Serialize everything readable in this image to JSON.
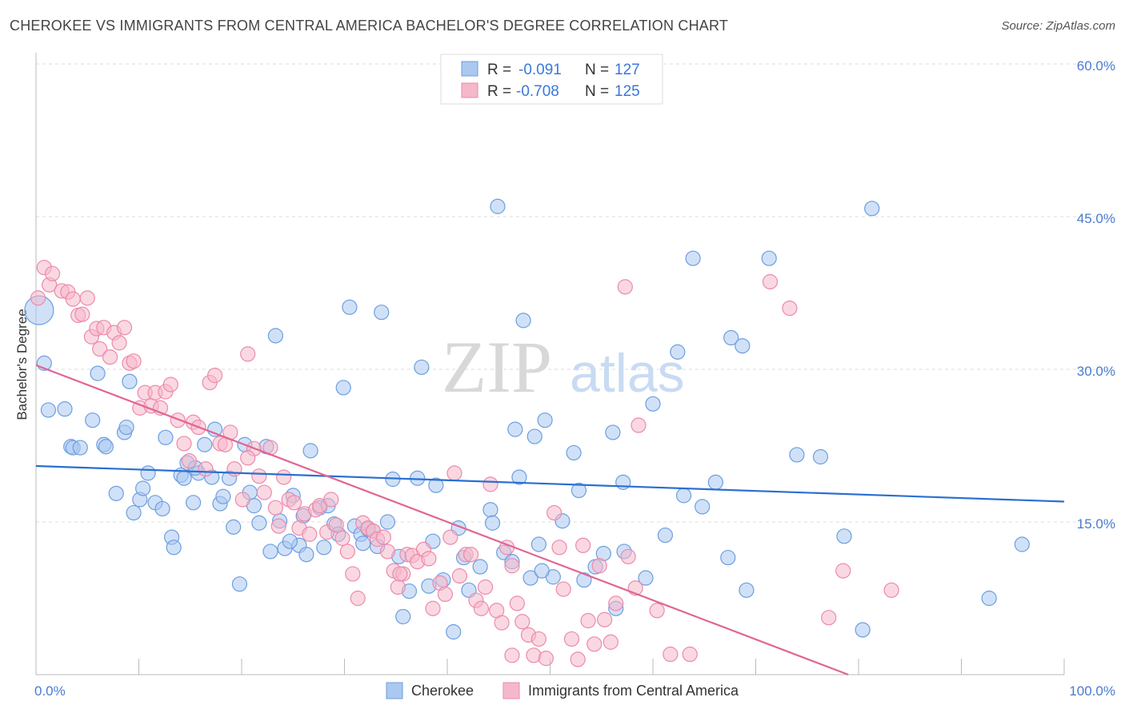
{
  "title": "CHEROKEE VS IMMIGRANTS FROM CENTRAL AMERICA BACHELOR'S DEGREE CORRELATION CHART",
  "source": "Source: ZipAtlas.com",
  "watermark": {
    "zip": "ZIP",
    "atlas": "atlas"
  },
  "legend": {
    "rows": [
      {
        "r_label": "R =",
        "r_value": "-0.091",
        "n_label": "N =",
        "n_value": "127"
      },
      {
        "r_label": "R =",
        "r_value": "-0.708",
        "n_label": "N =",
        "n_value": "125"
      }
    ]
  },
  "colors": {
    "blue_fill": "#aac8f0",
    "blue_stroke": "#6d9ee0",
    "blue_line": "#2a6fd2",
    "pink_fill": "#f5b8cb",
    "pink_stroke": "#ec8aaa",
    "pink_line": "#e06595",
    "value_text": "#3a78d8",
    "grid": "#dddddd"
  },
  "chart_data": {
    "type": "scatter",
    "title": "CHEROKEE VS IMMIGRANTS FROM CENTRAL AMERICA BACHELOR'S DEGREE CORRELATION CHART",
    "xlabel": "",
    "ylabel": "Bachelor's Degree",
    "xlim": [
      0,
      100
    ],
    "ylim": [
      0,
      60
    ],
    "x_tick_labels": [
      "0.0%",
      "100.0%"
    ],
    "y_ticks": [
      15,
      30,
      45,
      60
    ],
    "y_tick_labels": [
      "15.0%",
      "30.0%",
      "45.0%",
      "60.0%"
    ],
    "grid": true,
    "legend_placement": "top-center",
    "series": [
      {
        "name": "Cherokee",
        "r": -0.091,
        "n": 127,
        "trend": {
          "x": [
            0,
            100
          ],
          "y": [
            20.5,
            17.0
          ]
        },
        "points": [
          [
            0.3,
            35.8
          ],
          [
            0.8,
            30.6
          ],
          [
            1.2,
            26.0
          ],
          [
            2.8,
            26.1
          ],
          [
            3.4,
            22.4
          ],
          [
            3.6,
            22.3
          ],
          [
            4.3,
            22.3
          ],
          [
            5.5,
            25.0
          ],
          [
            6,
            29.6
          ],
          [
            6.6,
            22.6
          ],
          [
            6.8,
            22.4
          ],
          [
            7.8,
            17.8
          ],
          [
            8.6,
            23.8
          ],
          [
            8.8,
            24.3
          ],
          [
            9.1,
            28.8
          ],
          [
            9.5,
            15.9
          ],
          [
            10.1,
            17.2
          ],
          [
            10.4,
            18.3
          ],
          [
            10.9,
            19.8
          ],
          [
            11.6,
            16.9
          ],
          [
            12.3,
            16.3
          ],
          [
            12.6,
            23.3
          ],
          [
            13.2,
            13.5
          ],
          [
            13.4,
            12.5
          ],
          [
            14.1,
            19.6
          ],
          [
            14.4,
            19.3
          ],
          [
            14.7,
            20.8
          ],
          [
            15.3,
            16.9
          ],
          [
            15.8,
            19.8
          ],
          [
            16.4,
            22.6
          ],
          [
            17.1,
            19.4
          ],
          [
            17.4,
            24.1
          ],
          [
            17.9,
            16.8
          ],
          [
            18.2,
            17.5
          ],
          [
            18.8,
            19.3
          ],
          [
            19.2,
            14.5
          ],
          [
            19.8,
            8.9
          ],
          [
            20.3,
            22.6
          ],
          [
            20.8,
            17.9
          ],
          [
            21.2,
            16.6
          ],
          [
            21.7,
            14.9
          ],
          [
            22.4,
            22.4
          ],
          [
            22.8,
            12.1
          ],
          [
            23.3,
            33.3
          ],
          [
            23.7,
            15.1
          ],
          [
            24.2,
            12.4
          ],
          [
            25,
            17.6
          ],
          [
            25.6,
            12.7
          ],
          [
            26,
            15.6
          ],
          [
            26.3,
            11.8
          ],
          [
            26.7,
            22.0
          ],
          [
            27.6,
            16.4
          ],
          [
            28,
            12.5
          ],
          [
            28.4,
            16.6
          ],
          [
            29,
            14.8
          ],
          [
            29.4,
            13.8
          ],
          [
            29.9,
            28.2
          ],
          [
            30.5,
            36.1
          ],
          [
            31,
            14.6
          ],
          [
            31.6,
            13.8
          ],
          [
            32.3,
            14.3
          ],
          [
            32.8,
            14.1
          ],
          [
            33.2,
            12.6
          ],
          [
            33.6,
            35.6
          ],
          [
            34.2,
            15.0
          ],
          [
            34.7,
            19.2
          ],
          [
            35.3,
            11.6
          ],
          [
            35.7,
            5.7
          ],
          [
            36.3,
            8.2
          ],
          [
            37.1,
            19.3
          ],
          [
            37.5,
            30.2
          ],
          [
            38.6,
            13.1
          ],
          [
            38.9,
            18.6
          ],
          [
            39.6,
            9.3
          ],
          [
            40.6,
            4.2
          ],
          [
            41.1,
            14.4
          ],
          [
            41.6,
            11.5
          ],
          [
            42.1,
            8.3
          ],
          [
            43.2,
            10.6
          ],
          [
            44.2,
            16.2
          ],
          [
            44.4,
            14.9
          ],
          [
            44.9,
            46.0
          ],
          [
            45.5,
            12.0
          ],
          [
            46.3,
            11.1
          ],
          [
            46.6,
            24.1
          ],
          [
            47.0,
            19.4
          ],
          [
            47.4,
            34.8
          ],
          [
            48.1,
            9.5
          ],
          [
            48.5,
            23.4
          ],
          [
            48.9,
            12.8
          ],
          [
            49.5,
            25.0
          ],
          [
            50.3,
            9.6
          ],
          [
            51.2,
            15.1
          ],
          [
            52.3,
            21.8
          ],
          [
            52.8,
            18.1
          ],
          [
            53.3,
            9.3
          ],
          [
            54.4,
            10.6
          ],
          [
            55.2,
            11.9
          ],
          [
            56.1,
            23.8
          ],
          [
            56.4,
            6.5
          ],
          [
            57.1,
            18.9
          ],
          [
            59.3,
            9.5
          ],
          [
            60,
            26.6
          ],
          [
            61.2,
            13.7
          ],
          [
            62.4,
            31.7
          ],
          [
            63,
            17.6
          ],
          [
            63.9,
            40.9
          ],
          [
            64.8,
            16.5
          ],
          [
            66.1,
            18.9
          ],
          [
            67.3,
            11.5
          ],
          [
            67.6,
            33.1
          ],
          [
            68.7,
            32.3
          ],
          [
            69.1,
            8.3
          ],
          [
            71.3,
            40.9
          ],
          [
            74,
            21.6
          ],
          [
            76.3,
            21.4
          ],
          [
            78.6,
            13.6
          ],
          [
            80.4,
            4.4
          ],
          [
            81.3,
            45.8
          ],
          [
            92.7,
            7.5
          ],
          [
            95.9,
            12.8
          ],
          [
            57.2,
            12.1
          ],
          [
            49.2,
            10.2
          ],
          [
            38.2,
            8.7
          ],
          [
            31.8,
            12.9
          ],
          [
            24.7,
            13.1
          ],
          [
            15.5,
            20.3
          ]
        ]
      },
      {
        "name": "Immigrants from Central America",
        "r": -0.708,
        "n": 125,
        "trend": {
          "x": [
            0,
            79
          ],
          "y": [
            30.4,
            0
          ]
        },
        "points": [
          [
            0.2,
            37.0
          ],
          [
            0.8,
            40.0
          ],
          [
            1.3,
            38.3
          ],
          [
            1.6,
            39.4
          ],
          [
            2.5,
            37.7
          ],
          [
            3.1,
            37.6
          ],
          [
            3.6,
            36.9
          ],
          [
            4.1,
            35.3
          ],
          [
            4.5,
            35.4
          ],
          [
            5,
            37.0
          ],
          [
            5.4,
            33.2
          ],
          [
            5.9,
            34.0
          ],
          [
            6.2,
            32.0
          ],
          [
            6.6,
            34.1
          ],
          [
            7.2,
            31.2
          ],
          [
            7.6,
            33.6
          ],
          [
            8.1,
            32.6
          ],
          [
            8.6,
            34.1
          ],
          [
            9.1,
            30.6
          ],
          [
            9.5,
            30.8
          ],
          [
            10.1,
            26.2
          ],
          [
            10.6,
            27.7
          ],
          [
            11.2,
            26.4
          ],
          [
            11.6,
            27.7
          ],
          [
            12.1,
            26.2
          ],
          [
            12.6,
            27.8
          ],
          [
            13.1,
            28.5
          ],
          [
            13.8,
            25.0
          ],
          [
            14.4,
            22.7
          ],
          [
            14.9,
            21.0
          ],
          [
            15.3,
            24.8
          ],
          [
            15.8,
            24.3
          ],
          [
            16.5,
            20.2
          ],
          [
            16.9,
            28.7
          ],
          [
            17.4,
            29.4
          ],
          [
            17.9,
            22.7
          ],
          [
            18.4,
            22.6
          ],
          [
            18.9,
            23.8
          ],
          [
            19.3,
            20.2
          ],
          [
            20.1,
            17.2
          ],
          [
            20.6,
            31.5
          ],
          [
            21.2,
            22.2
          ],
          [
            21.7,
            19.5
          ],
          [
            22.2,
            17.9
          ],
          [
            22.8,
            22.3
          ],
          [
            23.3,
            16.4
          ],
          [
            23.6,
            14.6
          ],
          [
            24.1,
            19.4
          ],
          [
            24.6,
            17.2
          ],
          [
            25.1,
            16.9
          ],
          [
            25.6,
            14.4
          ],
          [
            26.1,
            15.8
          ],
          [
            26.6,
            13.8
          ],
          [
            27.2,
            16.2
          ],
          [
            27.6,
            16.6
          ],
          [
            28.3,
            14.0
          ],
          [
            28.7,
            17.2
          ],
          [
            29.2,
            14.7
          ],
          [
            29.8,
            13.4
          ],
          [
            30.3,
            12.1
          ],
          [
            30.8,
            9.9
          ],
          [
            31.3,
            7.5
          ],
          [
            31.8,
            14.9
          ],
          [
            32.3,
            14.4
          ],
          [
            32.8,
            14.1
          ],
          [
            33.2,
            13.3
          ],
          [
            33.8,
            13.5
          ],
          [
            34.2,
            12.1
          ],
          [
            34.8,
            10.2
          ],
          [
            35.2,
            8.6
          ],
          [
            35.7,
            9.9
          ],
          [
            36.1,
            11.8
          ],
          [
            36.6,
            11.7
          ],
          [
            37.1,
            11.1
          ],
          [
            37.7,
            12.3
          ],
          [
            38.2,
            11.4
          ],
          [
            38.6,
            6.5
          ],
          [
            39.3,
            9.0
          ],
          [
            39.8,
            7.9
          ],
          [
            40.3,
            13.5
          ],
          [
            40.7,
            19.8
          ],
          [
            41.2,
            9.7
          ],
          [
            41.8,
            11.8
          ],
          [
            42.3,
            11.8
          ],
          [
            42.8,
            7.3
          ],
          [
            43.3,
            6.5
          ],
          [
            43.7,
            8.6
          ],
          [
            44.2,
            18.7
          ],
          [
            44.8,
            6.3
          ],
          [
            45.3,
            5.1
          ],
          [
            45.8,
            12.5
          ],
          [
            46.3,
            10.7
          ],
          [
            46.8,
            7.0
          ],
          [
            47.3,
            5.2
          ],
          [
            47.9,
            3.9
          ],
          [
            48.4,
            1.9
          ],
          [
            48.9,
            3.5
          ],
          [
            49.6,
            1.6
          ],
          [
            50.4,
            15.9
          ],
          [
            50.9,
            12.5
          ],
          [
            51.3,
            8.4
          ],
          [
            52.1,
            3.5
          ],
          [
            52.7,
            1.5
          ],
          [
            53.2,
            12.7
          ],
          [
            53.7,
            5.3
          ],
          [
            54.3,
            3.0
          ],
          [
            54.8,
            10.7
          ],
          [
            55.3,
            5.4
          ],
          [
            55.9,
            3.2
          ],
          [
            56.4,
            7.0
          ],
          [
            57.3,
            38.1
          ],
          [
            57.6,
            11.6
          ],
          [
            58.3,
            8.5
          ],
          [
            58.6,
            24.5
          ],
          [
            60.4,
            6.3
          ],
          [
            61.7,
            2.0
          ],
          [
            63.6,
            2.0
          ],
          [
            71.4,
            38.6
          ],
          [
            73.3,
            36.0
          ],
          [
            77.1,
            5.6
          ],
          [
            78.5,
            10.2
          ],
          [
            83.2,
            8.3
          ],
          [
            46.3,
            1.9
          ],
          [
            35.4,
            9.9
          ],
          [
            20.6,
            21.3
          ]
        ]
      }
    ]
  },
  "bottom_legend": [
    {
      "label": "Cherokee"
    },
    {
      "label": "Immigrants from Central America"
    }
  ]
}
